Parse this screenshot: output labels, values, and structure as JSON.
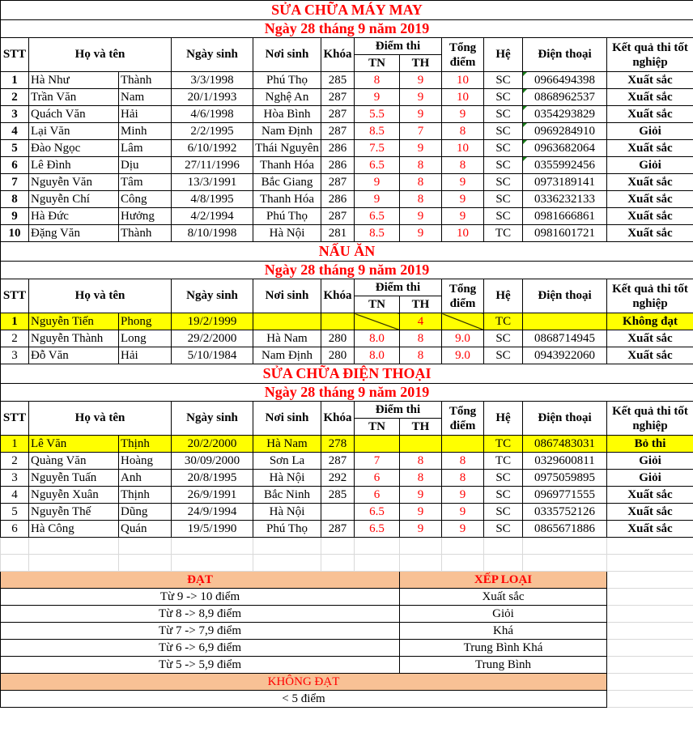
{
  "headers": {
    "stt": "STT",
    "name": "Họ và tên",
    "dob": "Ngày sinh",
    "pob": "Nơi sinh",
    "course": "Khóa",
    "scores": "Điểm thi",
    "tn": "TN",
    "th": "TH",
    "total": "Tổng điểm",
    "type": "Hệ",
    "phone": "Điện thoại",
    "result": "Kết quả thi tốt nghiệp"
  },
  "sections": [
    {
      "title": "SỬA CHỮA MÁY MAY",
      "date": "Ngày 28 tháng 9 năm 2019",
      "rows": [
        [
          "1",
          "Hà Như",
          "Thành",
          "3/3/1998",
          "Phú Thọ",
          "285",
          "8",
          "9",
          "10",
          "SC",
          "0966494398",
          "Xuất sắc"
        ],
        [
          "2",
          "Trần Văn",
          "Nam",
          "20/1/1993",
          "Nghệ An",
          "287",
          "9",
          "9",
          "10",
          "SC",
          "0868962537",
          "Xuất sắc"
        ],
        [
          "3",
          "Quách Văn",
          "Hải",
          "4/6/1998",
          "Hòa Bình",
          "287",
          "5.5",
          "9",
          "9",
          "SC",
          "0354293829",
          "Xuất sắc"
        ],
        [
          "4",
          "Lại Văn",
          "Minh",
          "2/2/1995",
          "Nam Định",
          "287",
          "8.5",
          "7",
          "8",
          "SC",
          "0969284910",
          "Giỏi"
        ],
        [
          "5",
          "Đào Ngọc",
          "Lâm",
          "6/10/1992",
          "Thái Nguyên",
          "286",
          "7.5",
          "9",
          "10",
          "SC",
          "0963682064",
          "Xuất sắc"
        ],
        [
          "6",
          "Lê Đình",
          "Dịu",
          "27/11/1996",
          "Thanh Hóa",
          "286",
          "6.5",
          "8",
          "8",
          "SC",
          "0355992456",
          "Giỏi"
        ],
        [
          "7",
          "Nguyễn Văn",
          "Tâm",
          "13/3/1991",
          "Bắc Giang",
          "287",
          "9",
          "8",
          "9",
          "SC",
          "0973189141",
          "Xuất sắc"
        ],
        [
          "8",
          "Nguyễn Chí",
          "Công",
          "4/8/1995",
          "Thanh Hóa",
          "286",
          "9",
          "8",
          "9",
          "SC",
          "0336232133",
          "Xuất sắc"
        ],
        [
          "9",
          "Hà Đức",
          "Hưởng",
          "4/2/1994",
          "Phú Thọ",
          "287",
          "6.5",
          "9",
          "9",
          "SC",
          "0981666861",
          "Xuất sắc"
        ],
        [
          "10",
          "Đặng Văn",
          "Thành",
          "8/10/1998",
          "Hà Nội",
          "281",
          "8.5",
          "9",
          "10",
          "TC",
          "0981601721",
          "Xuất sắc"
        ]
      ]
    },
    {
      "title": "NẤU ĂN",
      "date": "Ngày 28 tháng 9 năm 2019",
      "rows": [
        [
          "1",
          "Nguyễn Tiến",
          "Phong",
          "19/2/1999",
          "",
          "",
          "",
          "4",
          "",
          "TC",
          "",
          "Không đạt"
        ],
        [
          "2",
          "Nguyễn Thành",
          "Long",
          "29/2/2000",
          "Hà Nam",
          "280",
          "8.0",
          "8",
          "9.0",
          "SC",
          "0868714945",
          "Xuất sắc"
        ],
        [
          "3",
          "Đỗ Văn",
          "Hải",
          "5/10/1984",
          "Nam Định",
          "280",
          "8.0",
          "8",
          "9.0",
          "SC",
          "0943922060",
          "Xuất sắc"
        ]
      ]
    },
    {
      "title": "SỬA CHỮA ĐIỆN THOẠI",
      "date": "Ngày 28 tháng 9 năm 2019",
      "rows": [
        [
          "1",
          "Lê Văn",
          "Thịnh",
          "20/2/2000",
          "Hà Nam",
          "278",
          "",
          "",
          "",
          "TC",
          "0867483031",
          "Bỏ thi"
        ],
        [
          "2",
          "Quàng Văn",
          "Hoàng",
          "30/09/2000",
          "Sơn La",
          "287",
          "7",
          "8",
          "8",
          "TC",
          "0329600811",
          "Giỏi"
        ],
        [
          "3",
          "Nguyễn Tuấn",
          "Anh",
          "20/8/1995",
          "Hà Nội",
          "292",
          "6",
          "8",
          "8",
          "SC",
          "0975059895",
          "Giỏi"
        ],
        [
          "4",
          "Nguyễn Xuân",
          "Thịnh",
          "26/9/1991",
          "Bắc Ninh",
          "285",
          "6",
          "9",
          "9",
          "SC",
          "0969771555",
          "Xuất sắc"
        ],
        [
          "5",
          "Nguyễn Thế",
          "Dũng",
          "24/9/1994",
          "Hà Nội",
          "",
          "6.5",
          "9",
          "9",
          "SC",
          "0335752126",
          "Xuất sắc"
        ],
        [
          "6",
          "Hà Công",
          "Quán",
          "19/5/1990",
          "Phú Thọ",
          "287",
          "6.5",
          "9",
          "9",
          "SC",
          "0865671886",
          "Xuất sắc"
        ]
      ]
    }
  ],
  "legend": {
    "pass_header": "ĐẠT",
    "grade_header": "XẾP LOẠI",
    "rows": [
      [
        "Từ 9 -> 10 điểm",
        "Xuất sắc"
      ],
      [
        "Từ 8 -> 8,9 điểm",
        "Giỏi"
      ],
      [
        "Từ 7 -> 7,9 điểm",
        "Khá"
      ],
      [
        "Từ 6 -> 6,9 điểm",
        "Trung Bình Khá"
      ],
      [
        "Từ 5 -> 5,9 điểm",
        "Trung Bình"
      ]
    ],
    "fail_header": "KHÔNG ĐẠT",
    "fail_row": "< 5 điểm"
  },
  "colors": {
    "title": "#ff0000",
    "highlight": "#ffff00",
    "legend_fill": "#f8c195"
  }
}
